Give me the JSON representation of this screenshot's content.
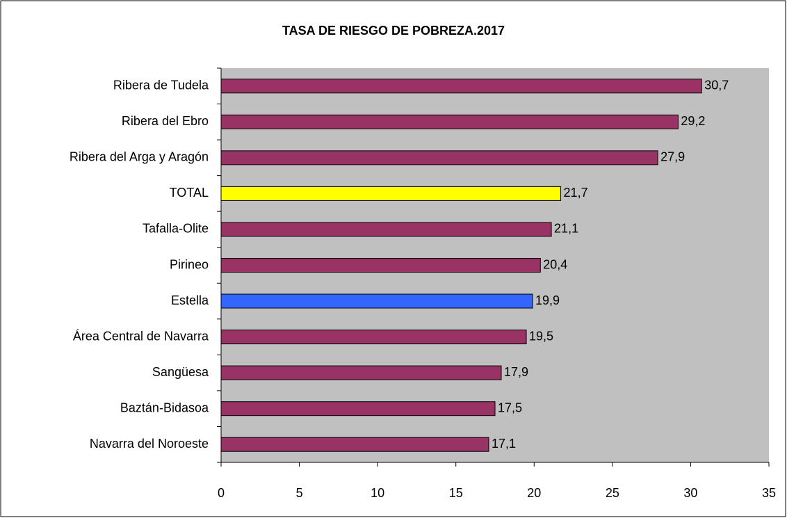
{
  "chart_data": {
    "type": "bar",
    "orientation": "horizontal",
    "title": "TASA DE RIESGO DE POBREZA.2017",
    "categories": [
      "Ribera de Tudela",
      "Ribera del Ebro",
      "Ribera del Arga y Aragón",
      "TOTAL",
      "Tafalla-Olite",
      "Pirineo",
      "Estella",
      "Área Central de Navarra",
      "Sangüesa",
      "Baztán-Bidasoa",
      "Navarra del Noroeste"
    ],
    "values": [
      30.7,
      29.2,
      27.9,
      21.7,
      21.1,
      20.4,
      19.9,
      19.5,
      17.9,
      17.5,
      17.1
    ],
    "value_labels": [
      "30,7",
      "29,2",
      "27,9",
      "21,7",
      "21,1",
      "20,4",
      "19,9",
      "19,5",
      "17,9",
      "17,5",
      "17,1"
    ],
    "colors": [
      "#993366",
      "#993366",
      "#993366",
      "#ffff00",
      "#993366",
      "#993366",
      "#3366ff",
      "#993366",
      "#993366",
      "#993366",
      "#993366"
    ],
    "xlim": [
      0,
      35
    ],
    "xticks": [
      0,
      5,
      10,
      15,
      20,
      25,
      30,
      35
    ],
    "plot_background": "#c0c0c0"
  }
}
